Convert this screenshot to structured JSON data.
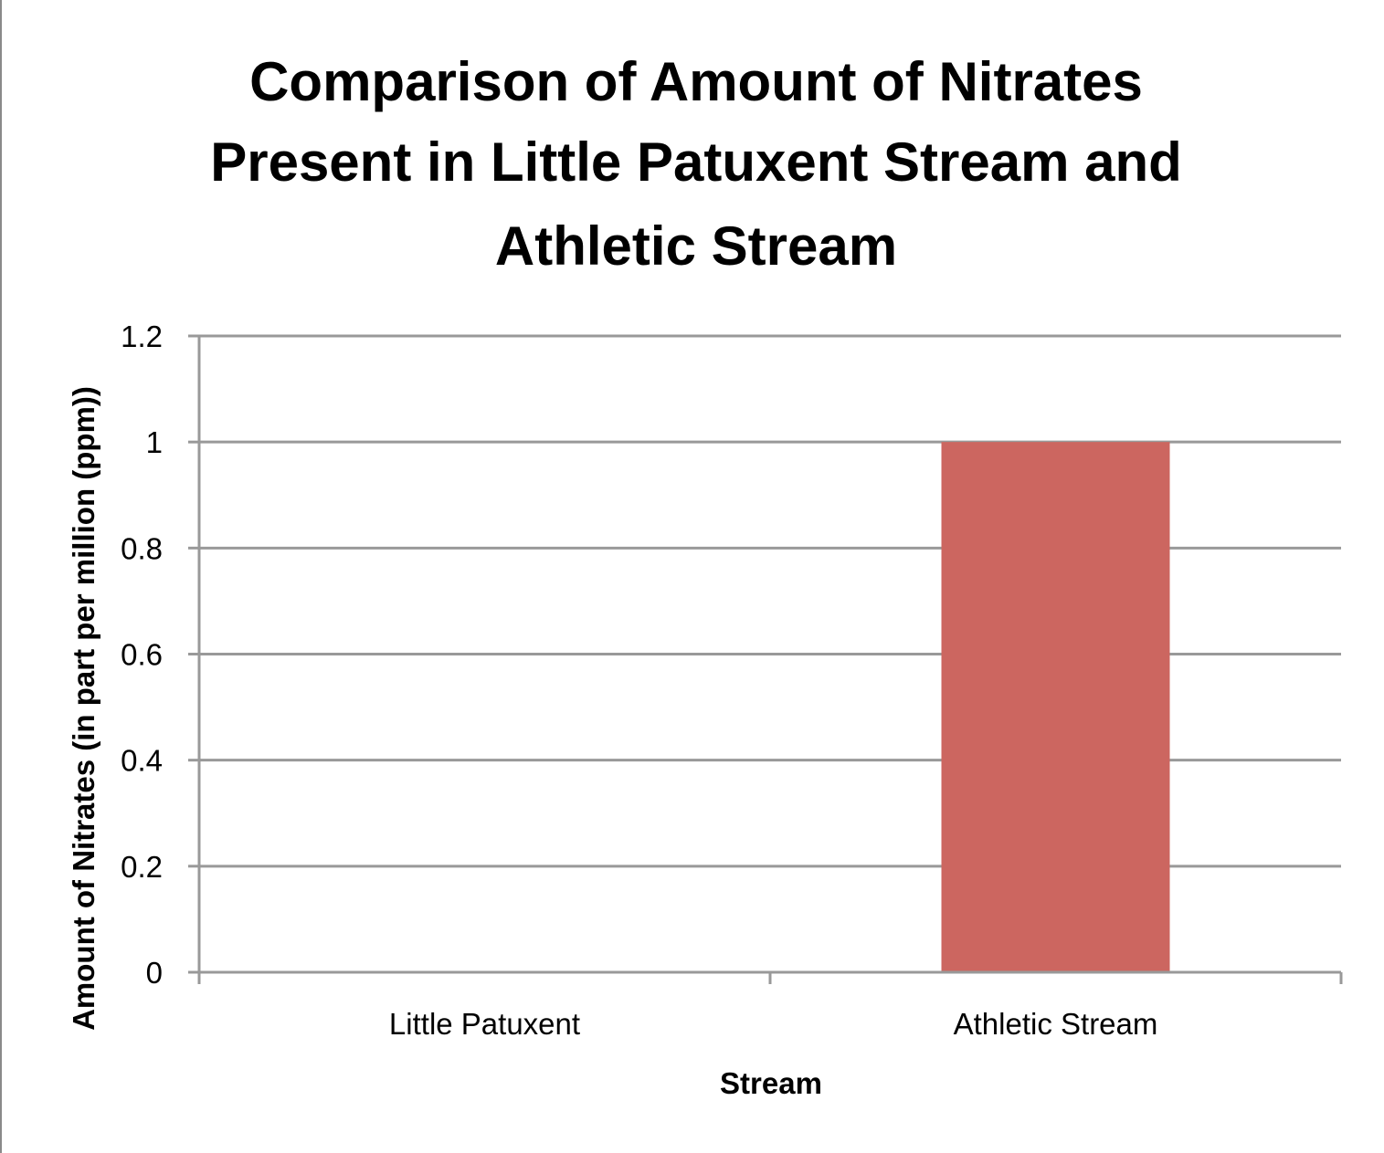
{
  "chart_data": {
    "type": "bar",
    "title_lines": [
      "Comparison of Amount of Nitrates",
      "Present in Little Patuxent Stream and",
      "Athletic Stream"
    ],
    "xlabel": "Stream",
    "ylabel": "Amount of Nitrates (in part per million (ppm))",
    "categories": [
      "Little Patuxent",
      "Athletic Stream"
    ],
    "values": [
      0,
      1
    ],
    "ylim": [
      0,
      1.2
    ],
    "yticks": [
      0,
      0.2,
      0.4,
      0.6,
      0.8,
      1,
      1.2
    ],
    "ytick_labels": [
      "0",
      "0.2",
      "0.4",
      "0.6",
      "0.8",
      "1",
      "1.2"
    ],
    "grid": true,
    "legend": "none",
    "bar_color": "#cc6660",
    "grid_color": "#999999"
  }
}
